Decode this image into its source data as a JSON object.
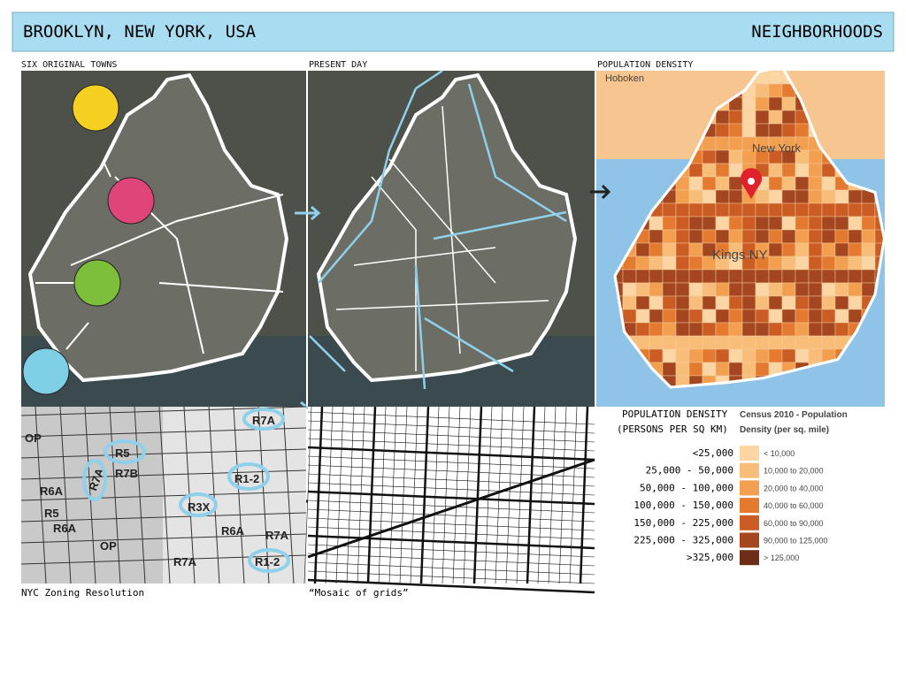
{
  "header": {
    "title": "BROOKLYN, NEW YORK, USA",
    "section": "NEIGHBORHOODS"
  },
  "panels": {
    "towns": "SIX ORIGINAL TOWNS",
    "present": "PRESENT DAY",
    "density": "POPULATION DENSITY"
  },
  "density_map": {
    "labels": [
      "Hoboken",
      "New York",
      "Kings NY"
    ]
  },
  "zoning": {
    "labels": [
      "OP",
      "R7A",
      "R5",
      "R7B",
      "R7A",
      "R6A",
      "R5",
      "R6A",
      "OP",
      "R3X",
      "R1-2",
      "R7A",
      "R6A",
      "R7A",
      "R1-2"
    ],
    "caption": "NYC Zoning Resolution"
  },
  "mosaic": {
    "caption": "“Mosaic of grids”"
  },
  "legend": {
    "title": [
      "POPULATION DENSITY",
      "(PERSONS PER SQ KM)"
    ],
    "census_title": [
      "Census 2010 - Population",
      "Density (per sq. mile)"
    ],
    "rows": [
      {
        "km": "<25,000",
        "mile": "< 10,000",
        "color": "#fbd6a4"
      },
      {
        "km": "25,000 - 50,000",
        "mile": "10,000 to 20,000",
        "color": "#f8bd79"
      },
      {
        "km": "50,000 - 100,000",
        "mile": "20,000 to 40,000",
        "color": "#f29f50"
      },
      {
        "km": "100,000 - 150,000",
        "mile": "40,000 to 60,000",
        "color": "#e47a30"
      },
      {
        "km": "150,000 - 225,000",
        "mile": "60,000 to 90,000",
        "color": "#cb5c24"
      },
      {
        "km": "225,000 - 325,000",
        "mile": "90,000 to 125,000",
        "color": "#a4461f"
      },
      {
        "km": ">325,000",
        "mile": "> 125,000",
        "color": "#6d2d17"
      }
    ]
  }
}
